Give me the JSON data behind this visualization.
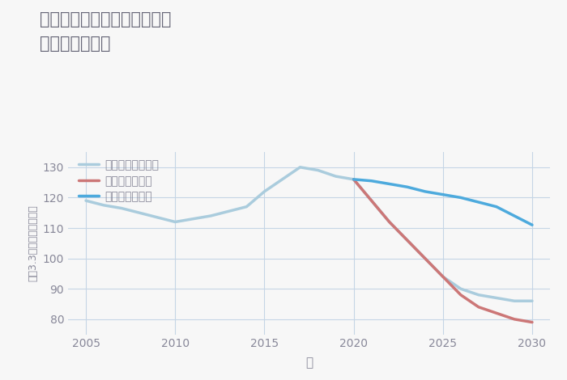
{
  "title": "兵庫県西宮市甲子園春風町の\n土地の価格推移",
  "xlabel": "年",
  "ylabel": "平（3.3㎡）単価（万円）",
  "xlim": [
    2004,
    2031
  ],
  "ylim": [
    75,
    135
  ],
  "yticks": [
    80,
    90,
    100,
    110,
    120,
    130
  ],
  "xticks": [
    2005,
    2010,
    2015,
    2020,
    2025,
    2030
  ],
  "good_scenario": {
    "x": [
      2020,
      2021,
      2022,
      2023,
      2024,
      2025,
      2026,
      2027,
      2028,
      2029,
      2030
    ],
    "y": [
      126,
      125.5,
      124.5,
      123.5,
      122,
      121,
      120,
      118.5,
      117,
      114,
      111
    ],
    "color": "#4DAADD",
    "linewidth": 2.5,
    "label": "グッドシナリオ"
  },
  "bad_scenario": {
    "x": [
      2020,
      2021,
      2022,
      2023,
      2024,
      2025,
      2026,
      2027,
      2028,
      2029,
      2030
    ],
    "y": [
      126,
      119,
      112,
      106,
      100,
      94,
      88,
      84,
      82,
      80,
      79
    ],
    "color": "#CC7777",
    "linewidth": 2.5,
    "label": "バッドシナリオ"
  },
  "normal_scenario": {
    "x": [
      2005,
      2006,
      2007,
      2008,
      2009,
      2010,
      2011,
      2012,
      2013,
      2014,
      2015,
      2016,
      2017,
      2018,
      2019,
      2020,
      2021,
      2022,
      2023,
      2024,
      2025,
      2026,
      2027,
      2028,
      2029,
      2030
    ],
    "y": [
      119,
      117.5,
      116.5,
      115,
      113.5,
      112,
      113,
      114,
      115.5,
      117,
      122,
      126,
      130,
      129,
      127,
      126,
      119,
      112,
      106,
      100,
      94,
      90,
      88,
      87,
      86,
      86
    ],
    "color": "#AACCDD",
    "linewidth": 2.5,
    "label": "ノーマルシナリオ"
  },
  "background_color": "#f7f7f7",
  "grid_color": "#c5d5e5",
  "title_color": "#666677",
  "axis_color": "#888899",
  "legend_dash_color_good": "#4DAADD",
  "legend_dash_color_bad": "#CC7777",
  "legend_dash_color_normal": "#AACCDD"
}
